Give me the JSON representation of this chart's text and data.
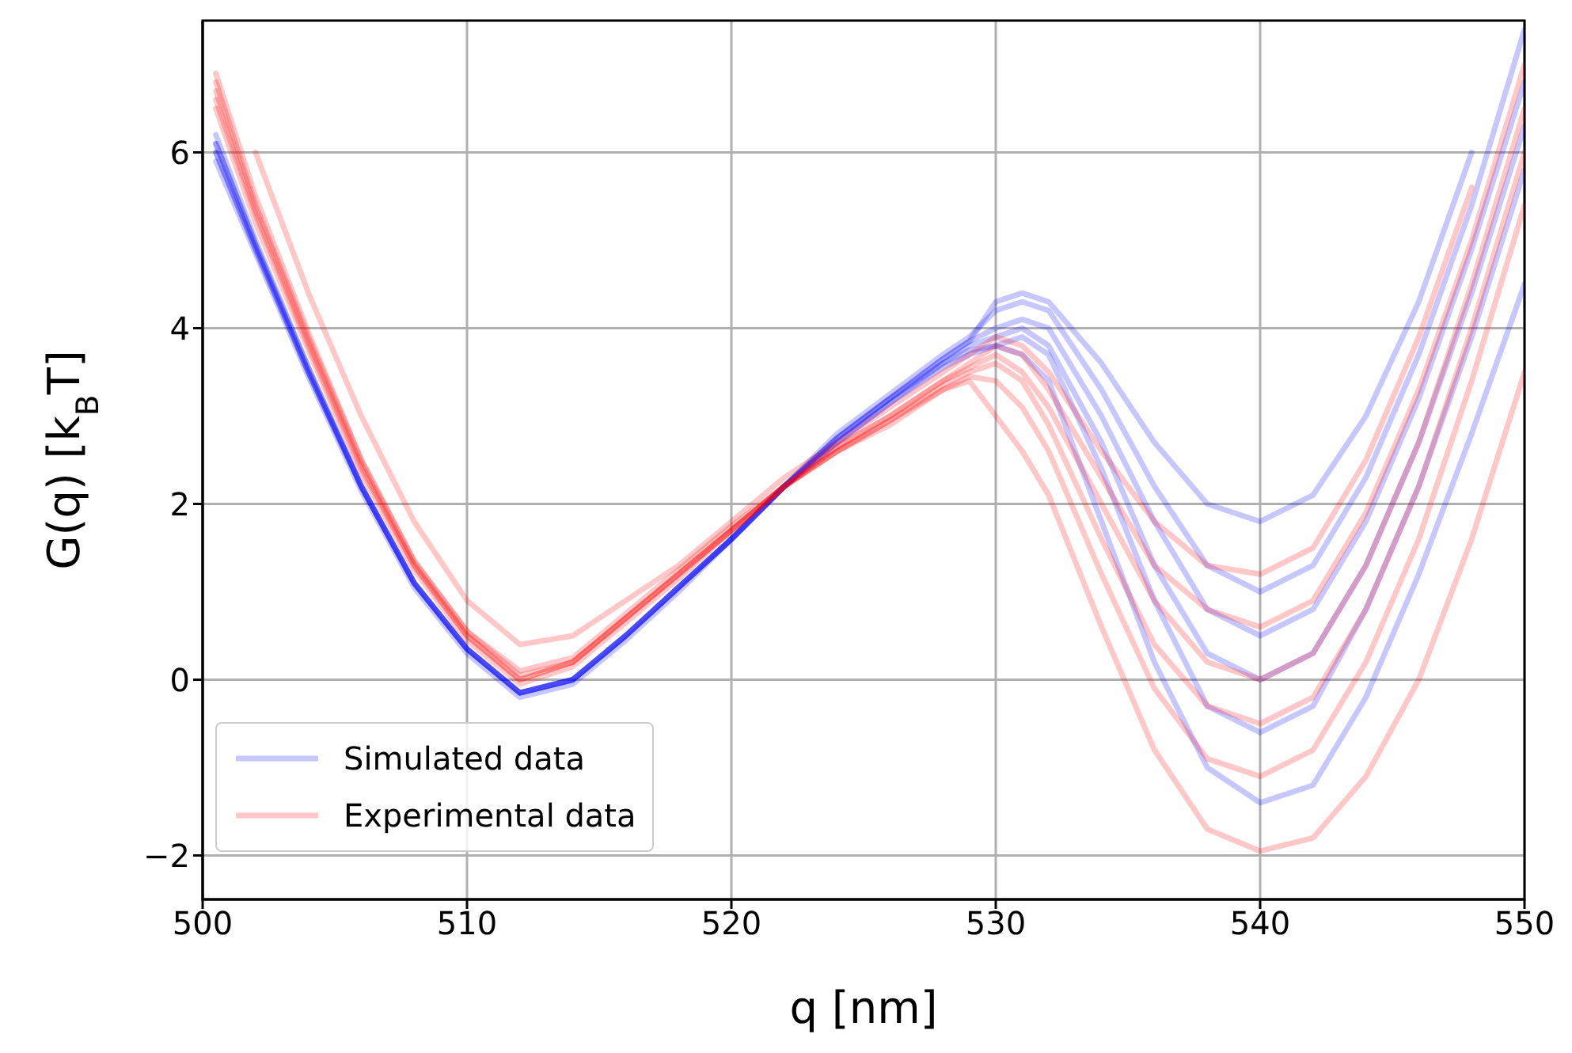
{
  "chart_data": {
    "type": "line",
    "xlabel": "q [nm]",
    "ylabel": "G(q) [k$_{B}$T]",
    "x": [
      500.5,
      502,
      504,
      506,
      508,
      510,
      512,
      514,
      516,
      518,
      520,
      522,
      524,
      526,
      528,
      529,
      530,
      531,
      532,
      534,
      536,
      538,
      540,
      542,
      544,
      546,
      548,
      550
    ],
    "series": [
      {
        "name": "Simulated data",
        "color": "#0000ff",
        "values": [
          6.0,
          4.9,
          3.5,
          2.2,
          1.1,
          0.35,
          -0.15,
          0.0,
          0.5,
          1.05,
          1.6,
          2.2,
          2.75,
          3.2,
          3.65,
          3.85,
          4.3,
          4.4,
          4.3,
          3.6,
          2.7,
          2.0,
          1.8,
          2.1,
          3.0,
          4.3,
          6.0,
          null
        ]
      },
      {
        "color": "#0000ff",
        "values": [
          6.1,
          4.95,
          3.55,
          2.2,
          1.1,
          0.35,
          -0.15,
          0.0,
          0.5,
          1.05,
          1.6,
          2.2,
          2.8,
          3.25,
          3.7,
          3.9,
          4.2,
          4.3,
          4.2,
          3.3,
          2.2,
          1.3,
          1.0,
          1.3,
          2.3,
          3.7,
          5.4,
          7.4
        ]
      },
      {
        "color": "#0000ff",
        "values": [
          5.9,
          4.85,
          3.45,
          2.15,
          1.05,
          0.3,
          -0.2,
          -0.05,
          0.45,
          1.0,
          1.6,
          2.2,
          2.75,
          3.2,
          3.65,
          3.85,
          4.0,
          4.1,
          4.0,
          3.0,
          1.8,
          0.8,
          0.5,
          0.8,
          1.8,
          3.2,
          4.9,
          6.8
        ]
      },
      {
        "color": "#0000ff",
        "values": [
          6.2,
          5.0,
          3.55,
          2.2,
          1.1,
          0.35,
          -0.15,
          0.0,
          0.5,
          1.05,
          1.6,
          2.2,
          2.75,
          3.2,
          3.6,
          3.8,
          3.9,
          4.0,
          3.8,
          2.7,
          1.3,
          0.3,
          0.0,
          0.3,
          1.3,
          2.7,
          4.4,
          6.3
        ]
      },
      {
        "color": "#0000ff",
        "values": [
          6.0,
          4.9,
          3.5,
          2.2,
          1.1,
          0.35,
          -0.15,
          0.0,
          0.5,
          1.05,
          1.6,
          2.2,
          2.7,
          3.15,
          3.6,
          3.75,
          3.8,
          3.9,
          3.7,
          2.4,
          0.9,
          -0.3,
          -0.6,
          -0.3,
          0.8,
          2.2,
          3.9,
          5.8
        ]
      },
      {
        "color": "#0000ff",
        "values": [
          6.1,
          4.95,
          3.5,
          2.2,
          1.1,
          0.35,
          -0.15,
          0.0,
          0.5,
          1.05,
          1.6,
          2.2,
          2.7,
          3.15,
          3.55,
          3.7,
          3.8,
          3.7,
          3.4,
          1.8,
          0.2,
          -1.0,
          -1.4,
          -1.2,
          -0.2,
          1.2,
          2.8,
          4.5
        ]
      },
      {
        "name": "Experimental data",
        "color": "#ff0000",
        "values": [
          null,
          6.0,
          4.4,
          3.0,
          1.8,
          0.9,
          0.4,
          0.5,
          0.9,
          1.3,
          1.8,
          2.3,
          2.7,
          3.1,
          3.5,
          3.7,
          3.9,
          3.8,
          3.5,
          2.6,
          1.8,
          1.3,
          1.2,
          1.5,
          2.5,
          3.9,
          5.6,
          null
        ]
      },
      {
        "color": "#ff0000",
        "values": [
          6.8,
          5.4,
          3.9,
          2.5,
          1.35,
          0.55,
          0.05,
          0.2,
          0.7,
          1.2,
          1.7,
          2.2,
          2.65,
          3.0,
          3.4,
          3.6,
          3.8,
          3.7,
          3.3,
          2.3,
          1.3,
          0.8,
          0.6,
          0.9,
          1.9,
          3.3,
          5.0,
          7.0
        ]
      },
      {
        "color": "#ff0000",
        "values": [
          6.6,
          5.3,
          3.8,
          2.4,
          1.3,
          0.5,
          0.0,
          0.2,
          0.7,
          1.2,
          1.7,
          2.2,
          2.65,
          3.0,
          3.4,
          3.55,
          3.7,
          3.5,
          3.1,
          2.0,
          0.9,
          0.2,
          0.0,
          0.3,
          1.3,
          2.7,
          4.5,
          6.5
        ]
      },
      {
        "color": "#ff0000",
        "values": [
          6.5,
          5.2,
          3.75,
          2.35,
          1.25,
          0.45,
          -0.05,
          0.15,
          0.65,
          1.15,
          1.7,
          2.2,
          2.6,
          2.95,
          3.35,
          3.5,
          3.6,
          3.4,
          2.9,
          1.6,
          0.4,
          -0.3,
          -0.5,
          -0.2,
          0.8,
          2.2,
          4.0,
          6.0
        ]
      },
      {
        "color": "#ff0000",
        "values": [
          6.7,
          5.35,
          3.85,
          2.45,
          1.3,
          0.5,
          0.0,
          0.2,
          0.7,
          1.2,
          1.7,
          2.2,
          2.6,
          2.95,
          3.3,
          3.45,
          3.4,
          3.1,
          2.6,
          1.2,
          -0.1,
          -0.9,
          -1.1,
          -0.8,
          0.2,
          1.6,
          3.4,
          5.4
        ]
      },
      {
        "color": "#ff0000",
        "values": [
          6.9,
          5.5,
          3.95,
          2.5,
          1.35,
          0.55,
          0.1,
          0.25,
          0.75,
          1.25,
          1.75,
          2.2,
          2.6,
          2.9,
          3.3,
          3.4,
          3.0,
          2.6,
          2.1,
          0.6,
          -0.8,
          -1.7,
          -1.95,
          -1.8,
          -1.1,
          0.0,
          1.6,
          3.5
        ]
      }
    ],
    "xlim": [
      500,
      550
    ],
    "xticks": [
      500,
      510,
      520,
      530,
      540,
      550
    ],
    "ylim": [
      -2.5,
      7.5
    ],
    "yticks": [
      -2,
      0,
      2,
      4,
      6
    ],
    "grid": true,
    "legend": "bottom left"
  }
}
